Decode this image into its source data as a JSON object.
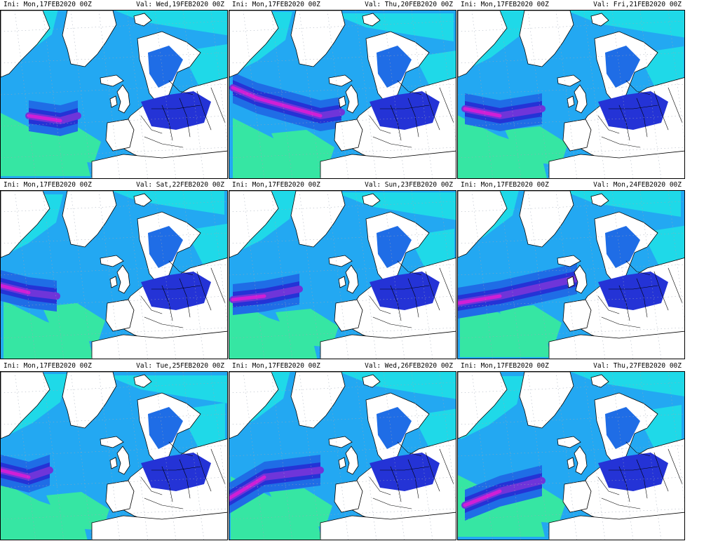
{
  "colors": {
    "cyan": "#1fd9e8",
    "green": "#36e6a3",
    "lightblue": "#23a8f2",
    "blue": "#1f6de6",
    "darkblue": "#2433d6",
    "purple": "#6f35d9",
    "magenta": "#d01fd6",
    "land": "#ffffff",
    "coast": "#000000"
  },
  "panels": [
    {
      "ini": "Ini: Mon,17FEB2020 00Z",
      "val": "Val: Wed,19FEB2020 00Z",
      "jet": [
        [
          40,
          150
        ],
        [
          85,
          157
        ],
        [
          110,
          150
        ]
      ]
    },
    {
      "ini": "Ini: Mon,17FEB2020 00Z",
      "val": "Val: Thu,20FEB2020 00Z",
      "jet": [
        [
          5,
          110
        ],
        [
          40,
          125
        ],
        [
          130,
          150
        ],
        [
          160,
          145
        ]
      ]
    },
    {
      "ini": "Ini: Mon,17FEB2020 00Z",
      "val": "Val: Fri,21FEB2020 00Z",
      "jet": [
        [
          10,
          140
        ],
        [
          60,
          150
        ],
        [
          120,
          140
        ]
      ]
    },
    {
      "ini": "Ini: Mon,17FEB2020 00Z",
      "val": "Val: Sat,22FEB2020 00Z",
      "jet": [
        [
          0,
          135
        ],
        [
          40,
          145
        ],
        [
          80,
          150
        ]
      ]
    },
    {
      "ini": "Ini: Mon,17FEB2020 00Z",
      "val": "Val: Sun,23FEB2020 00Z",
      "jet": [
        [
          5,
          155
        ],
        [
          50,
          150
        ],
        [
          100,
          140
        ]
      ]
    },
    {
      "ini": "Ini: Mon,17FEB2020 00Z",
      "val": "Val: Mon,24FEB2020 00Z",
      "jet": [
        [
          0,
          160
        ],
        [
          60,
          150
        ],
        [
          170,
          125
        ]
      ]
    },
    {
      "ini": "Ini: Mon,17FEB2020 00Z",
      "val": "Val: Tue,25FEB2020 00Z",
      "jet": [
        [
          0,
          140
        ],
        [
          40,
          150
        ],
        [
          70,
          140
        ]
      ]
    },
    {
      "ini": "Ini: Mon,17FEB2020 00Z",
      "val": "Val: Wed,26FEB2020 00Z",
      "jet": [
        [
          0,
          180
        ],
        [
          50,
          150
        ],
        [
          130,
          140
        ]
      ]
    },
    {
      "ini": "Ini: Mon,17FEB2020 00Z",
      "val": "Val: Thu,27FEB2020 00Z",
      "jet": [
        [
          10,
          190
        ],
        [
          60,
          170
        ],
        [
          120,
          155
        ]
      ]
    }
  ]
}
